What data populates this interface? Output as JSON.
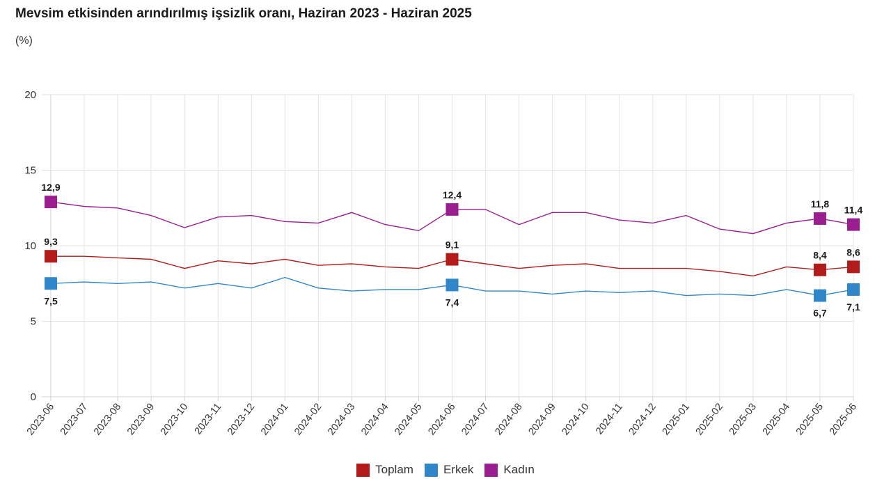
{
  "chart_data": {
    "type": "line",
    "title": "Mevsim etkisinden arındırılmış işsizlik oranı, Haziran 2023 - Haziran 2025",
    "unit_label": "(%)",
    "xlabel": "",
    "ylabel": "(%)",
    "ylim": [
      0,
      20
    ],
    "yticks": [
      "0",
      "5",
      "10",
      "15",
      "20"
    ],
    "ytick_values": [
      0,
      5,
      10,
      15,
      20
    ],
    "grid": true,
    "legend_position": "bottom-center",
    "categories": [
      "2023-06",
      "2023-07",
      "2023-08",
      "2023-09",
      "2023-10",
      "2023-11",
      "2023-12",
      "2024-01",
      "2024-02",
      "2024-03",
      "2024-04",
      "2024-05",
      "2024-06",
      "2024-07",
      "2024-08",
      "2024-09",
      "2024-10",
      "2024-11",
      "2024-12",
      "2025-01",
      "2025-02",
      "2025-03",
      "2025-04",
      "2025-05",
      "2025-06"
    ],
    "series": [
      {
        "name": "Toplam",
        "color": "#b31b1b",
        "values": [
          9.3,
          9.3,
          9.2,
          9.1,
          8.5,
          9.0,
          8.8,
          9.1,
          8.7,
          8.8,
          8.6,
          8.5,
          9.1,
          8.8,
          8.5,
          8.7,
          8.8,
          8.5,
          8.5,
          8.5,
          8.3,
          8.0,
          8.6,
          8.4,
          8.6
        ],
        "labeled": [
          {
            "index": 0,
            "text": "9,3",
            "pos": "above"
          },
          {
            "index": 12,
            "text": "9,1",
            "pos": "above"
          },
          {
            "index": 23,
            "text": "8,4",
            "pos": "above"
          },
          {
            "index": 24,
            "text": "8,6",
            "pos": "above"
          }
        ]
      },
      {
        "name": "Erkek",
        "color": "#2f86c8",
        "values": [
          7.5,
          7.6,
          7.5,
          7.6,
          7.2,
          7.5,
          7.2,
          7.9,
          7.2,
          7.0,
          7.1,
          7.1,
          7.4,
          7.0,
          7.0,
          6.8,
          7.0,
          6.9,
          7.0,
          6.7,
          6.8,
          6.7,
          7.1,
          6.7,
          7.1
        ],
        "labeled": [
          {
            "index": 0,
            "text": "7,5",
            "pos": "below"
          },
          {
            "index": 12,
            "text": "7,4",
            "pos": "below"
          },
          {
            "index": 23,
            "text": "6,7",
            "pos": "below"
          },
          {
            "index": 24,
            "text": "7,1",
            "pos": "below"
          }
        ]
      },
      {
        "name": "Kadın",
        "color": "#9b1e91",
        "values": [
          12.9,
          12.6,
          12.5,
          12.0,
          11.2,
          11.9,
          12.0,
          11.6,
          11.5,
          12.2,
          11.4,
          11.0,
          12.4,
          12.4,
          11.4,
          12.2,
          12.2,
          11.7,
          11.5,
          12.0,
          11.1,
          10.8,
          11.5,
          11.8,
          11.4
        ],
        "labeled": [
          {
            "index": 0,
            "text": "12,9",
            "pos": "above"
          },
          {
            "index": 12,
            "text": "12,4",
            "pos": "above"
          },
          {
            "index": 23,
            "text": "11,8",
            "pos": "above"
          },
          {
            "index": 24,
            "text": "11,4",
            "pos": "above"
          }
        ]
      }
    ]
  }
}
